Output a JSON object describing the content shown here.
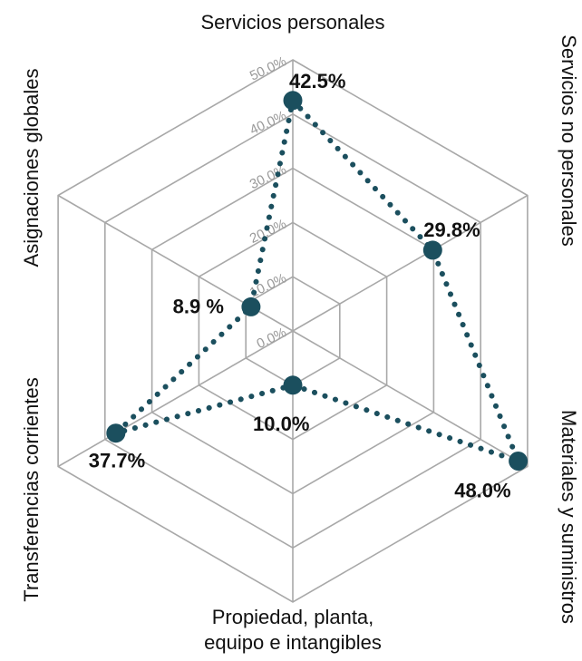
{
  "chart_data": {
    "type": "radar",
    "title": "",
    "axes": [
      "Servicios personales",
      "Servicios no personales",
      "Materiales y suministros",
      "Propiedad, planta, equipo e intangibles",
      "Transferencias corrientes",
      "Asignaciones globales"
    ],
    "axis_label_lines": [
      [
        "Servicios personales"
      ],
      [
        "Servicios no personales"
      ],
      [
        "Materiales y suministros"
      ],
      [
        "Propiedad, planta,",
        "equipo e intangibles"
      ],
      [
        "Transferencias corrientes"
      ],
      [
        "Asignaciones globales"
      ]
    ],
    "values": [
      42.5,
      29.8,
      48.0,
      10.0,
      37.7,
      8.9
    ],
    "data_labels": [
      "42.5%",
      "29.8%",
      "48.0%",
      "10.0%",
      "37.7%",
      "8.9 %"
    ],
    "ticks": [
      0,
      10,
      20,
      30,
      40,
      50
    ],
    "tick_labels": [
      "0.0%",
      "10.0%",
      "20.0%",
      "30.0%",
      "40.0%",
      "50.0%"
    ],
    "range": [
      0,
      50
    ],
    "grid": true,
    "legend": "none",
    "colors": {
      "series": "#1b4f5e",
      "grid": "#a8a8a8"
    }
  }
}
